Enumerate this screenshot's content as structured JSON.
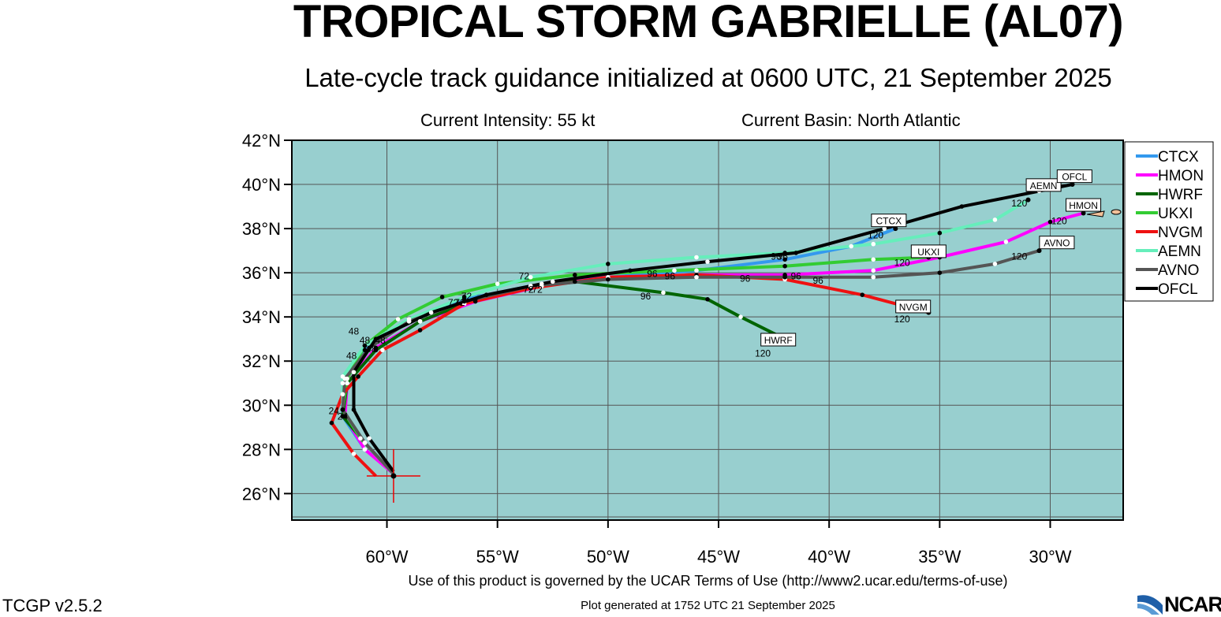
{
  "header": {
    "title": "TROPICAL STORM GABRIELLE (AL07)",
    "subtitle": "Late-cycle track guidance initialized at 0600 UTC, 21 September 2025",
    "intensity": "Current Intensity: 55 kt",
    "basin": "Current Basin: North Atlantic"
  },
  "footer": {
    "terms": "Use of this product is governed by the UCAR Terms of Use (http://www2.ucar.edu/terms-of-use)",
    "generated": "Plot generated at 1752 UTC   21 September 2025",
    "version": "TCGP v2.5.2",
    "logo": "NCAR"
  },
  "colors": {
    "ocean": "#98cfcf",
    "grid": "#555555"
  },
  "chart_data": {
    "type": "line",
    "x_unit": "deg longitude (negative = W)",
    "y_unit": "deg latitude N",
    "xlim": [
      -64.3,
      -26.7
    ],
    "ylim": [
      24.8,
      42.0
    ],
    "x_ticks": [
      -60,
      -55,
      -50,
      -45,
      -40,
      -35,
      -30
    ],
    "x_tick_labels": [
      "60°W",
      "55°W",
      "50°W",
      "45°W",
      "40°W",
      "35°W",
      "30°W"
    ],
    "y_ticks": [
      26,
      28,
      30,
      32,
      34,
      36,
      38,
      40,
      42
    ],
    "y_tick_labels": [
      "26°N",
      "28°N",
      "30°N",
      "32°N",
      "34°N",
      "36°N",
      "38°N",
      "40°N",
      "42°N"
    ],
    "grid": true,
    "legend_position": "right",
    "current_position": [
      -59.7,
      26.8
    ],
    "series": [
      {
        "name": "CTCX",
        "color": "#3399ee",
        "end_label": "120",
        "points": [
          [
            -59.7,
            27.0
          ],
          [
            -61.0,
            28.0
          ],
          [
            -62.0,
            29.5
          ],
          [
            -62.0,
            31.0
          ],
          [
            -61.0,
            32.5
          ],
          [
            -59.0,
            33.8
          ],
          [
            -56.5,
            34.8
          ],
          [
            -53.5,
            35.4
          ],
          [
            -50.0,
            35.8
          ],
          [
            -46.0,
            36.1
          ],
          [
            -42.0,
            36.6
          ],
          [
            -39.0,
            37.2
          ],
          [
            -37.0,
            38.0
          ]
        ]
      },
      {
        "name": "HMON",
        "color": "#ff00ff",
        "end_label": "120",
        "points": [
          [
            -59.7,
            26.9
          ],
          [
            -61.0,
            28.0
          ],
          [
            -61.9,
            29.5
          ],
          [
            -61.8,
            31.0
          ],
          [
            -60.5,
            32.6
          ],
          [
            -58.5,
            33.8
          ],
          [
            -56.0,
            34.7
          ],
          [
            -53.0,
            35.4
          ],
          [
            -50.0,
            35.8
          ],
          [
            -46.0,
            35.9
          ],
          [
            -42.0,
            35.9
          ],
          [
            -38.0,
            36.1
          ],
          [
            -35.0,
            36.7
          ],
          [
            -32.0,
            37.4
          ],
          [
            -30.0,
            38.3
          ],
          [
            -28.5,
            38.7
          ]
        ]
      },
      {
        "name": "HWRF",
        "color": "#006400",
        "end_label": "120",
        "points": [
          [
            -59.7,
            26.9
          ],
          [
            -61.0,
            28.3
          ],
          [
            -62.0,
            29.5
          ],
          [
            -61.8,
            31.0
          ],
          [
            -60.5,
            32.5
          ],
          [
            -58.5,
            33.8
          ],
          [
            -56.0,
            34.8
          ],
          [
            -53.0,
            35.5
          ],
          [
            -51.5,
            35.6
          ],
          [
            -47.5,
            35.1
          ],
          [
            -45.5,
            34.8
          ],
          [
            -44.0,
            34.0
          ],
          [
            -42.0,
            33.0
          ]
        ]
      },
      {
        "name": "UKXI",
        "color": "#33cc33",
        "end_label": "120",
        "points": [
          [
            -59.7,
            26.9
          ],
          [
            -61.2,
            28.5
          ],
          [
            -62.0,
            29.8
          ],
          [
            -61.8,
            31.2
          ],
          [
            -61.0,
            32.7
          ],
          [
            -59.5,
            33.9
          ],
          [
            -57.5,
            34.9
          ],
          [
            -55.0,
            35.5
          ],
          [
            -51.5,
            35.9
          ],
          [
            -47.0,
            36.1
          ],
          [
            -42.0,
            36.3
          ],
          [
            -38.0,
            36.6
          ],
          [
            -35.5,
            36.7
          ]
        ]
      },
      {
        "name": "NVGM",
        "color": "#ee1111",
        "end_label": "120",
        "points": [
          [
            -60.5,
            26.8
          ],
          [
            -61.5,
            27.8
          ],
          [
            -62.5,
            29.2
          ],
          [
            -62.0,
            30.5
          ],
          [
            -61.3,
            31.3
          ],
          [
            -60.2,
            32.5
          ],
          [
            -58.5,
            33.4
          ],
          [
            -56.5,
            34.6
          ],
          [
            -53.5,
            35.3
          ],
          [
            -50.0,
            35.8
          ],
          [
            -46.0,
            35.9
          ],
          [
            -42.0,
            35.7
          ],
          [
            -38.5,
            35.0
          ],
          [
            -35.5,
            34.2
          ]
        ]
      },
      {
        "name": "AEMN",
        "color": "#66eebb",
        "end_label": "120",
        "points": [
          [
            -59.7,
            26.9
          ],
          [
            -61.0,
            28.3
          ],
          [
            -62.0,
            29.8
          ],
          [
            -62.0,
            31.3
          ],
          [
            -61.0,
            32.7
          ],
          [
            -59.0,
            33.9
          ],
          [
            -56.5,
            34.9
          ],
          [
            -53.5,
            35.8
          ],
          [
            -50.0,
            36.4
          ],
          [
            -46.0,
            36.7
          ],
          [
            -42.0,
            36.9
          ],
          [
            -38.0,
            37.3
          ],
          [
            -35.0,
            37.8
          ],
          [
            -32.5,
            38.4
          ],
          [
            -31.0,
            39.3
          ]
        ]
      },
      {
        "name": "AVNO",
        "color": "#555555",
        "end_label": "120",
        "points": [
          [
            -59.7,
            26.9
          ],
          [
            -61.0,
            28.3
          ],
          [
            -62.0,
            29.8
          ],
          [
            -61.9,
            31.2
          ],
          [
            -60.8,
            32.6
          ],
          [
            -59.0,
            33.8
          ],
          [
            -56.5,
            34.7
          ],
          [
            -53.5,
            35.4
          ],
          [
            -50.0,
            35.7
          ],
          [
            -46.0,
            35.8
          ],
          [
            -42.0,
            35.8
          ],
          [
            -38.0,
            35.8
          ],
          [
            -35.0,
            36.0
          ],
          [
            -32.5,
            36.4
          ],
          [
            -30.5,
            37.0
          ]
        ]
      },
      {
        "name": "OFCL",
        "color": "#000000",
        "end_label": "120",
        "points": [
          [
            -59.7,
            27.0
          ],
          [
            -60.8,
            28.5
          ],
          [
            -61.5,
            29.8
          ],
          [
            -61.5,
            31.5
          ],
          [
            -60.5,
            33.0
          ],
          [
            -58.0,
            34.2
          ],
          [
            -55.5,
            35.0
          ],
          [
            -52.5,
            35.6
          ],
          [
            -49.0,
            36.1
          ],
          [
            -45.5,
            36.5
          ],
          [
            -41.5,
            36.9
          ],
          [
            -37.5,
            38.0
          ],
          [
            -34.0,
            39.0
          ],
          [
            -30.5,
            39.7
          ],
          [
            -29.0,
            40.0
          ]
        ]
      }
    ],
    "forecast_hour_labels": [
      {
        "text": "24",
        "lon": -62.4,
        "lat": 29.6
      },
      {
        "text": "24",
        "lon": -62.0,
        "lat": 29.35
      },
      {
        "text": "48",
        "lon": -61.5,
        "lat": 33.2
      },
      {
        "text": "48",
        "lon": -61.6,
        "lat": 32.1
      },
      {
        "text": "48",
        "lon": -60.7,
        "lat": 32.4
      },
      {
        "text": "48",
        "lon": -61.0,
        "lat": 32.8
      },
      {
        "text": "48",
        "lon": -60.3,
        "lat": 32.8
      },
      {
        "text": "72",
        "lon": -53.8,
        "lat": 35.7
      },
      {
        "text": "72",
        "lon": -56.4,
        "lat": 34.8
      },
      {
        "text": "72",
        "lon": -57.0,
        "lat": 34.5
      },
      {
        "text": "72",
        "lon": -53.6,
        "lat": 35.1
      },
      {
        "text": "72",
        "lon": -53.2,
        "lat": 35.1
      },
      {
        "text": "72",
        "lon": -56.7,
        "lat": 34.5
      },
      {
        "text": "96",
        "lon": -48.0,
        "lat": 35.8
      },
      {
        "text": "96",
        "lon": -47.2,
        "lat": 35.7
      },
      {
        "text": "96",
        "lon": -48.3,
        "lat": 34.8
      },
      {
        "text": "96",
        "lon": -42.4,
        "lat": 36.6
      },
      {
        "text": "96",
        "lon": -43.8,
        "lat": 35.6
      },
      {
        "text": "96",
        "lon": -41.5,
        "lat": 35.7
      },
      {
        "text": "96",
        "lon": -40.5,
        "lat": 35.5
      },
      {
        "text": "96",
        "lon": -42.1,
        "lat": 36.6
      }
    ],
    "end_points_120": [
      {
        "lon": -37.0,
        "lat": 38.0,
        "label_lon": -37.9,
        "label_lat": 37.55
      },
      {
        "lon": -28.5,
        "lat": 38.7,
        "label_lon": -29.6,
        "label_lat": 38.2
      },
      {
        "lon": -42.0,
        "lat": 33.0,
        "label_lon": -43.0,
        "label_lat": 32.2
      },
      {
        "lon": -35.5,
        "lat": 36.7,
        "label_lon": -36.7,
        "label_lat": 36.3
      },
      {
        "lon": -35.5,
        "lat": 34.2,
        "label_lon": -36.7,
        "label_lat": 33.75
      },
      {
        "lon": -31.0,
        "lat": 39.3,
        "label_lon": -31.4,
        "label_lat": 39.0
      },
      {
        "lon": -30.5,
        "lat": 37.0,
        "label_lon": -31.4,
        "label_lat": 36.6
      },
      {
        "lon": -29.0,
        "lat": 40.0,
        "label_lon": -29.9,
        "label_lat": 39.7
      }
    ],
    "model_tags": [
      {
        "text": "CTCX",
        "lon": -37.3,
        "lat": 38.3
      },
      {
        "text": "HMON",
        "lon": -28.5,
        "lat": 39.0
      },
      {
        "text": "HWRF",
        "lon": -42.3,
        "lat": 32.9
      },
      {
        "text": "UKXI",
        "lon": -35.5,
        "lat": 36.9
      },
      {
        "text": "NVGM",
        "lon": -36.2,
        "lat": 34.4
      },
      {
        "text": "AEMN",
        "lon": -30.3,
        "lat": 39.9
      },
      {
        "text": "AVNO",
        "lon": -29.7,
        "lat": 37.3
      },
      {
        "text": "OFCL",
        "lon": -28.9,
        "lat": 40.3
      }
    ]
  }
}
